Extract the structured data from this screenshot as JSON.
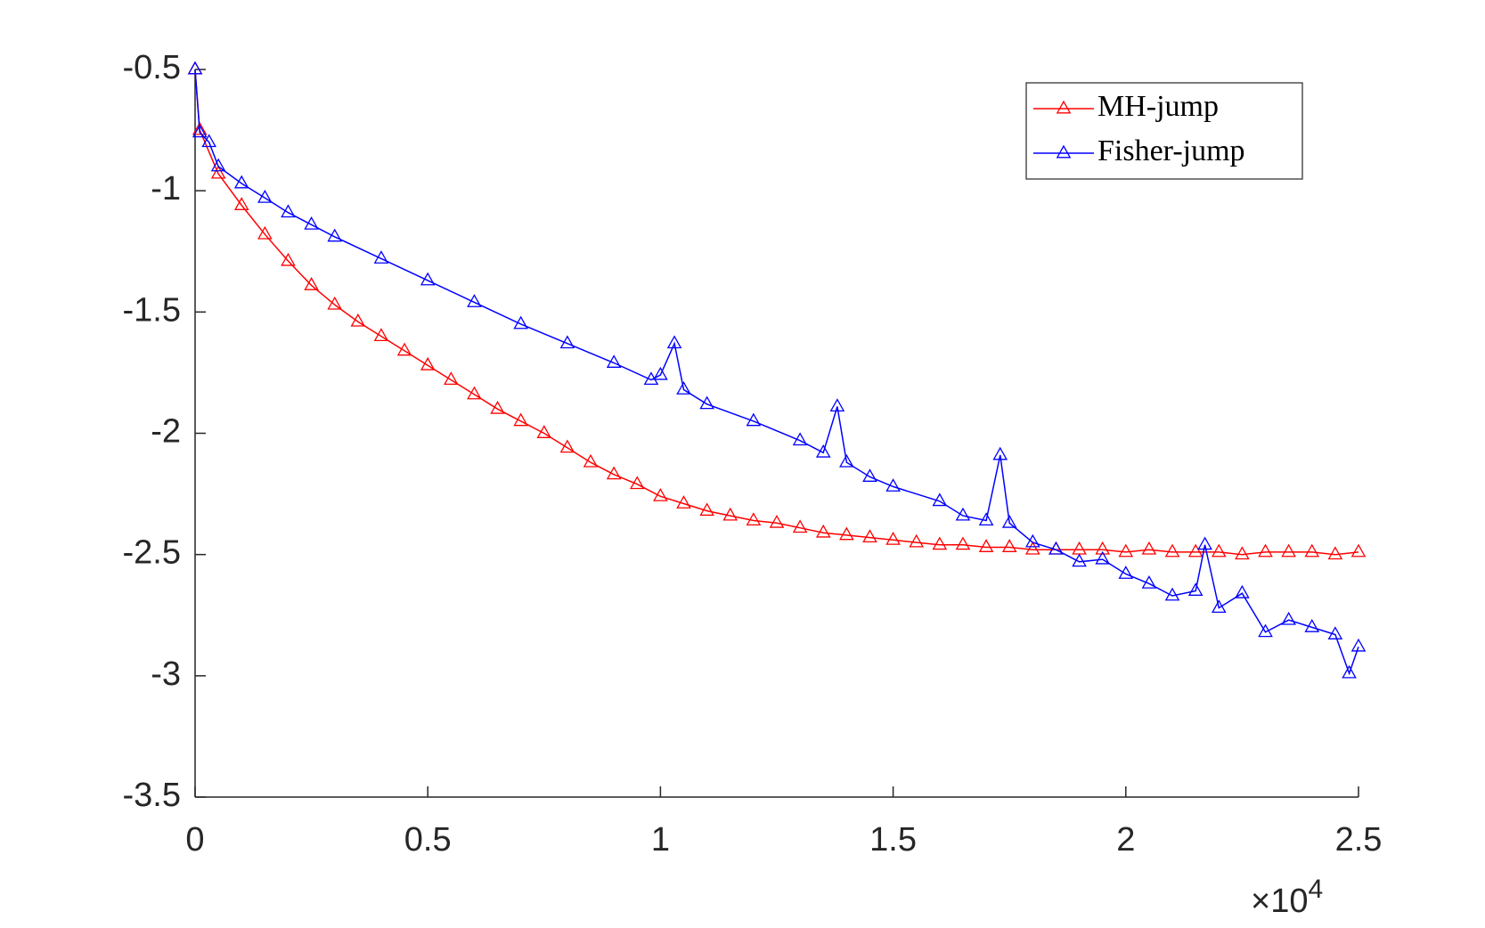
{
  "chart_data": {
    "type": "line",
    "xlim": [
      0,
      25000
    ],
    "xticks": [
      0,
      {
        "value": 5000,
        "label": "0.5"
      },
      {
        "value": 10000,
        "label": "1"
      },
      {
        "value": 15000,
        "label": "1.5"
      },
      {
        "value": 20000,
        "label": "2"
      },
      {
        "value": 25000,
        "label": "2.5"
      }
    ],
    "x_multiplier": {
      "base": "×10",
      "exponent": "4"
    },
    "ylim": [
      -3.5,
      -0.5
    ],
    "yticks": [
      -3.5,
      -3,
      -2.5,
      -2,
      -1.5,
      -1,
      -0.5
    ],
    "grid": false,
    "legend": "northeast",
    "marker": "triangle",
    "series": [
      {
        "name": "MH-jump",
        "color": "#ff0000",
        "x": [
          0,
          100,
          500,
          1000,
          1500,
          2000,
          2500,
          3000,
          3500,
          4000,
          4500,
          5000,
          5500,
          6000,
          6500,
          7000,
          7500,
          8000,
          8500,
          9000,
          9500,
          10000,
          10500,
          11000,
          11500,
          12000,
          12500,
          13000,
          13500,
          14000,
          14500,
          15000,
          15500,
          16000,
          16500,
          17000,
          17500,
          18000,
          18500,
          19000,
          19500,
          20000,
          20500,
          21000,
          21500,
          22000,
          22500,
          23000,
          23500,
          24000,
          24500,
          25000
        ],
        "values": [
          -0.5,
          -0.75,
          -0.93,
          -1.06,
          -1.18,
          -1.29,
          -1.39,
          -1.47,
          -1.54,
          -1.6,
          -1.66,
          -1.72,
          -1.78,
          -1.84,
          -1.9,
          -1.95,
          -2.0,
          -2.06,
          -2.12,
          -2.17,
          -2.21,
          -2.26,
          -2.29,
          -2.32,
          -2.34,
          -2.36,
          -2.37,
          -2.39,
          -2.41,
          -2.42,
          -2.43,
          -2.44,
          -2.45,
          -2.46,
          -2.46,
          -2.47,
          -2.47,
          -2.48,
          -2.48,
          -2.48,
          -2.48,
          -2.49,
          -2.48,
          -2.49,
          -2.49,
          -2.49,
          -2.5,
          -2.49,
          -2.49,
          -2.49,
          -2.5,
          -2.49
        ]
      },
      {
        "name": "Fisher-jump",
        "color": "#0000ff",
        "x": [
          0,
          100,
          300,
          500,
          1000,
          1500,
          2000,
          2500,
          3000,
          4000,
          5000,
          6000,
          7000,
          8000,
          9000,
          9800,
          10000,
          10300,
          10500,
          11000,
          12000,
          13000,
          13500,
          13800,
          14000,
          14500,
          15000,
          16000,
          16500,
          17000,
          17300,
          17500,
          18000,
          18500,
          19000,
          19500,
          20000,
          20500,
          21000,
          21500,
          21700,
          22000,
          22500,
          23000,
          23500,
          24000,
          24500,
          24800,
          25000
        ],
        "values": [
          -0.5,
          -0.76,
          -0.8,
          -0.9,
          -0.97,
          -1.03,
          -1.09,
          -1.14,
          -1.19,
          -1.28,
          -1.37,
          -1.46,
          -1.55,
          -1.63,
          -1.71,
          -1.78,
          -1.76,
          -1.63,
          -1.82,
          -1.88,
          -1.95,
          -2.03,
          -2.08,
          -1.89,
          -2.12,
          -2.18,
          -2.22,
          -2.28,
          -2.34,
          -2.36,
          -2.09,
          -2.37,
          -2.45,
          -2.48,
          -2.53,
          -2.52,
          -2.58,
          -2.62,
          -2.67,
          -2.65,
          -2.46,
          -2.72,
          -2.66,
          -2.82,
          -2.77,
          -2.8,
          -2.83,
          -2.99,
          -2.88
        ]
      }
    ]
  }
}
